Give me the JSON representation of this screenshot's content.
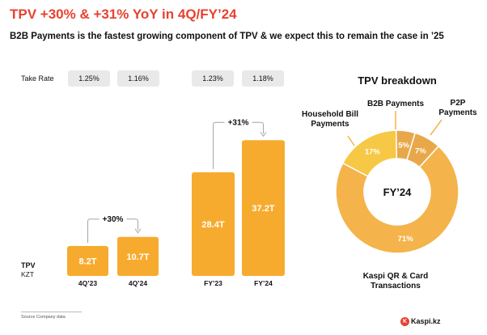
{
  "header": {
    "title": "TPV +30% & +31% YoY in 4Q/FY’24",
    "subtitle": "B2B Payments is the fastest growing component of TPV & we expect this to remain the case in ’25"
  },
  "take_rate": {
    "label": "Take Rate",
    "values": [
      "1.25%",
      "1.16%",
      "1.23%",
      "1.18%"
    ]
  },
  "axis_label": {
    "metric": "TPV",
    "unit": "KZT"
  },
  "footer": {
    "source": "Source     Company data",
    "brand": "Kaspi.kz",
    "brand_icon": "K"
  },
  "colors": {
    "bar": "#f7ab2e",
    "title": "#e8412f",
    "donut_main": "#f4b44b",
    "donut_household": "#f7c846",
    "donut_small": "#e8a84a"
  },
  "chart_data": [
    {
      "type": "bar",
      "title": "",
      "categories": [
        "4Q’23",
        "4Q’24"
      ],
      "values": [
        8.2,
        10.7
      ],
      "value_labels": [
        "8.2T",
        "10.7T"
      ],
      "growth_label": "+30%"
    },
    {
      "type": "bar",
      "title": "",
      "categories": [
        "FY’23",
        "FY’24"
      ],
      "values": [
        28.4,
        37.2
      ],
      "value_labels": [
        "28.4T",
        "37.2T"
      ],
      "growth_label": "+31%"
    },
    {
      "type": "pie",
      "title": "TPV breakdown",
      "center_label": "FY’24",
      "slices": [
        {
          "name": "Kaspi QR & Card Transactions",
          "label_line1": "Kaspi QR & Card",
          "label_line2": "Transactions",
          "value": 71,
          "value_label": "71%"
        },
        {
          "name": "Household Bill Payments",
          "label_line1": "Household Bill",
          "label_line2": "Payments",
          "value": 17,
          "value_label": "17%"
        },
        {
          "name": "B2B Payments",
          "label_line1": "B2B Payments",
          "label_line2": "",
          "value": 5,
          "value_label": "5%"
        },
        {
          "name": "P2P Payments",
          "label_line1": "P2P",
          "label_line2": "Payments",
          "value": 7,
          "value_label": "7%"
        }
      ]
    }
  ]
}
